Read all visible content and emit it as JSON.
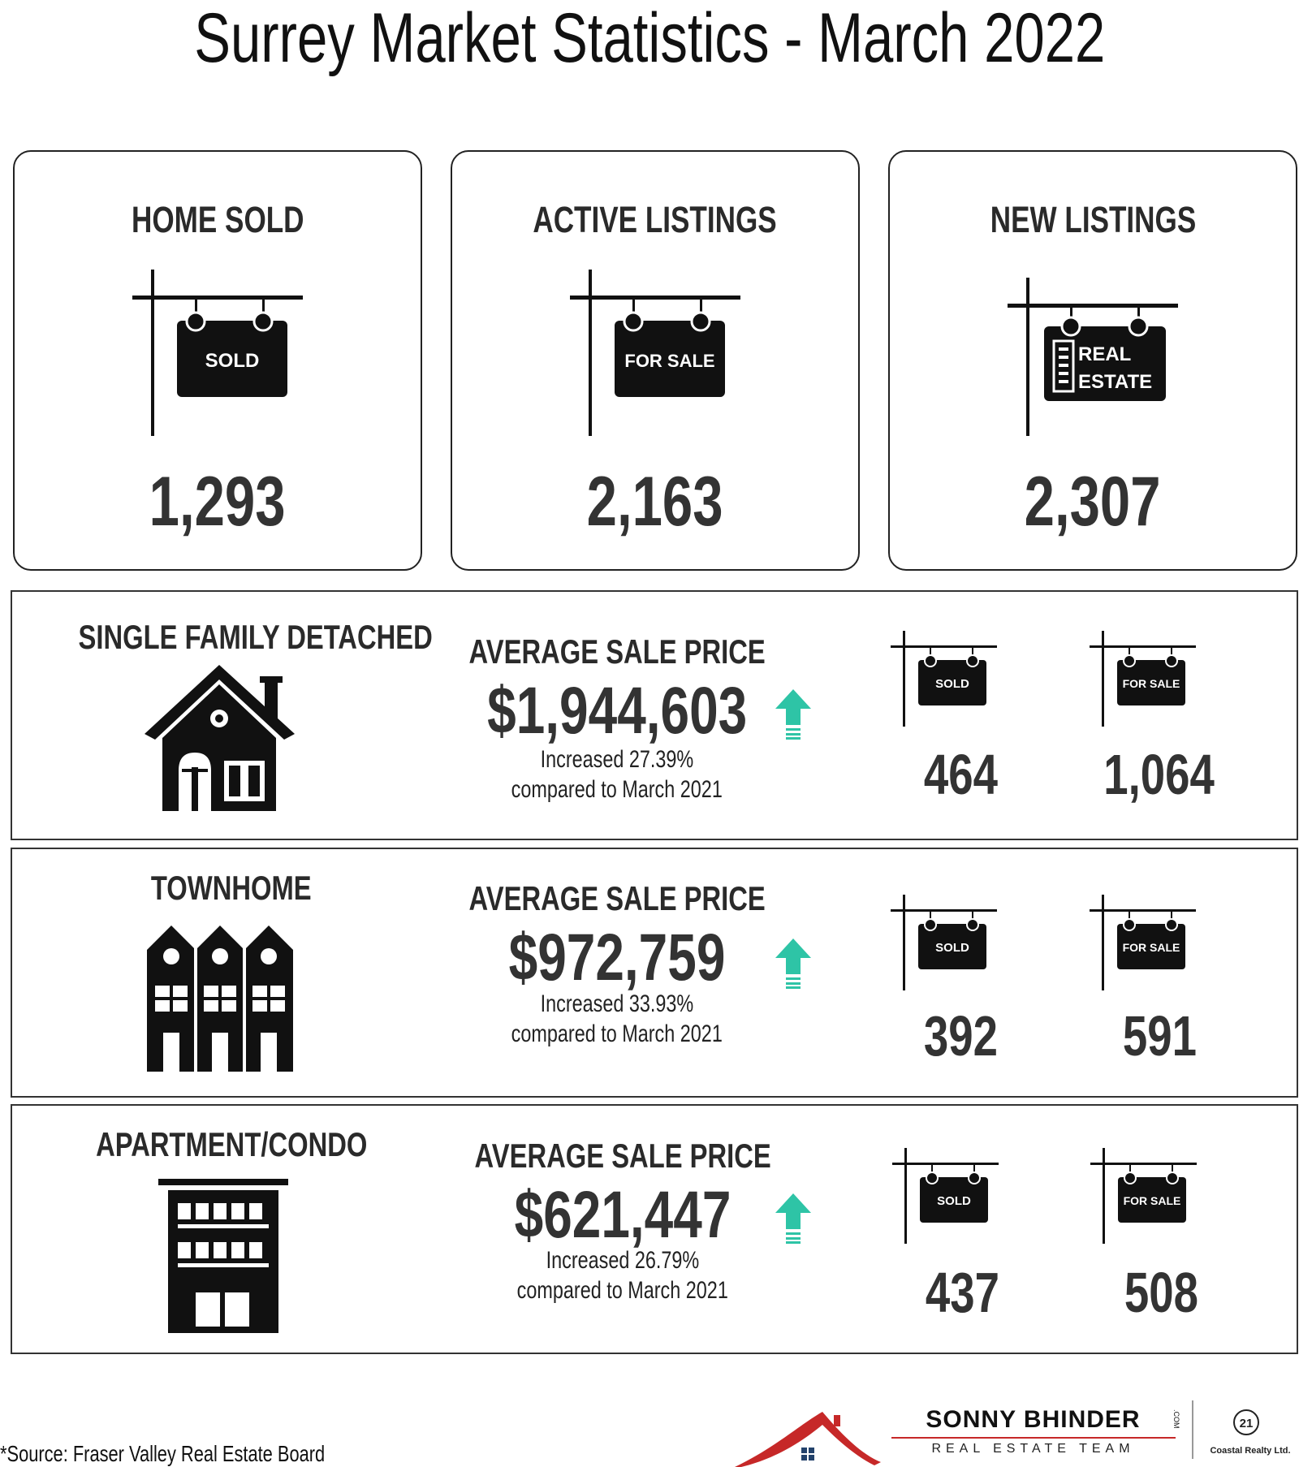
{
  "title": "Surrey Market Statistics - March 2022",
  "summary": [
    {
      "label": "HOME SOLD",
      "sign_text": "SOLD",
      "value": "1,293"
    },
    {
      "label": "ACTIVE LISTINGS",
      "sign_text": "FOR SALE",
      "value": "2,163"
    },
    {
      "label": "NEW LISTINGS",
      "sign_text": "REAL ESTATE",
      "sign_line1": "REAL",
      "sign_line2": "ESTATE",
      "value": "2,307"
    }
  ],
  "property_types": [
    {
      "name": "SINGLE FAMILY DETACHED",
      "icon": "house-icon",
      "asp_label": "AVERAGE SALE PRICE",
      "asp_value": "$1,944,603",
      "change": "Increased 27.39%",
      "compare": "compared to March 2021",
      "sold_sign": "SOLD",
      "sold_value": "464",
      "forsale_sign": "FOR SALE",
      "forsale_value": "1,064"
    },
    {
      "name": "TOWNHOME",
      "icon": "townhome-icon",
      "asp_label": "AVERAGE SALE PRICE",
      "asp_value": "$972,759",
      "change": "Increased 33.93%",
      "compare": "compared to March 2021",
      "sold_sign": "SOLD",
      "sold_value": "392",
      "forsale_sign": "FOR SALE",
      "forsale_value": "591"
    },
    {
      "name": "APARTMENT/CONDO",
      "icon": "apartment-icon",
      "asp_label": "AVERAGE SALE PRICE",
      "asp_value": "$621,447",
      "change": "Increased 26.79%",
      "compare": "compared to March 2021",
      "sold_sign": "SOLD",
      "sold_value": "437",
      "forsale_sign": "FOR SALE",
      "forsale_value": "508"
    }
  ],
  "source": "*Source: Fraser Valley Real Estate Board",
  "brand": {
    "name": "SONNY BHINDER",
    "com": ".COM",
    "team": "REAL ESTATE TEAM",
    "c21_mark": "21",
    "c21_text": "Coastal Realty Ltd."
  },
  "colors": {
    "text": "#111111",
    "value": "#333333",
    "arrow": "#2ec4a6",
    "brand_red": "#c62828"
  }
}
